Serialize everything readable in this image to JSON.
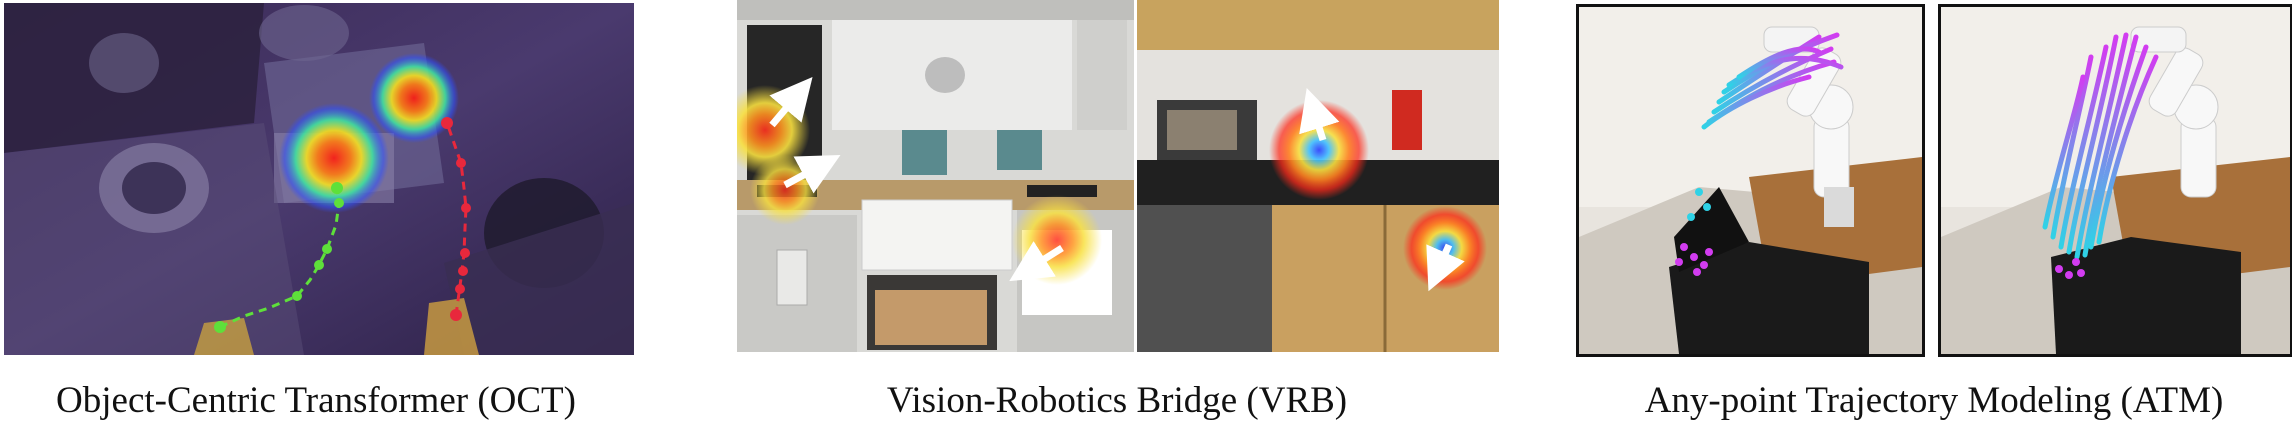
{
  "figure": {
    "panels": [
      {
        "id": "oct",
        "caption": "Object-Centric Transformer (OCT)"
      },
      {
        "id": "vrb",
        "caption": "Vision-Robotics Bridge (VRB)"
      },
      {
        "id": "atm",
        "caption": "Any-point Trajectory Modeling (ATM)"
      }
    ]
  },
  "colors": {
    "trajectory_green": "#5ee03a",
    "trajectory_red": "#e8283c",
    "atm_magenta": "#d23cf0",
    "atm_cyan": "#2fd2e6",
    "heatmap_hot": "#ff2a1a",
    "heatmap_cool": "#2a3cff"
  }
}
